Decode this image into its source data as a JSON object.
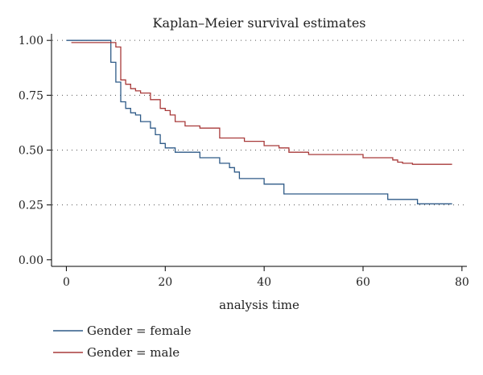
{
  "chart_data": {
    "type": "line",
    "step": "post",
    "title": "Kaplan–Meier survival estimates",
    "xlabel": "analysis time",
    "ylabel": "",
    "xlim": [
      -3,
      81
    ],
    "ylim": [
      -0.03,
      1.03
    ],
    "xticks": [
      0,
      20,
      40,
      60,
      80
    ],
    "xtick_labels": [
      "0",
      "20",
      "40",
      "60",
      "80"
    ],
    "yticks": [
      0,
      0.25,
      0.5,
      0.75,
      1.0
    ],
    "ytick_labels": [
      "0.00",
      "0.25",
      "0.50",
      "0.75",
      "1.00"
    ],
    "grid": "horizontal dotted",
    "legend_position": "bottom-left",
    "series": [
      {
        "name": "Gender = female",
        "color": "#2e5a87",
        "x": [
          0,
          9,
          10,
          11,
          12,
          13,
          14,
          15,
          17,
          18,
          19,
          20,
          22,
          27,
          31,
          33,
          34,
          35,
          36,
          40,
          44,
          65,
          71,
          78
        ],
        "y": [
          1.0,
          0.9,
          0.81,
          0.72,
          0.69,
          0.67,
          0.66,
          0.63,
          0.6,
          0.57,
          0.53,
          0.51,
          0.49,
          0.465,
          0.44,
          0.42,
          0.4,
          0.37,
          0.37,
          0.345,
          0.3,
          0.275,
          0.255,
          0.255
        ]
      },
      {
        "name": "Gender = male",
        "color": "#a83a3a",
        "x": [
          1,
          9,
          10,
          11,
          12,
          13,
          14,
          15,
          17,
          19,
          20,
          21,
          22,
          24,
          27,
          31,
          36,
          40,
          43,
          45,
          49,
          60,
          66,
          67,
          68,
          70,
          78
        ],
        "y": [
          0.99,
          0.99,
          0.97,
          0.82,
          0.8,
          0.78,
          0.77,
          0.76,
          0.73,
          0.69,
          0.68,
          0.66,
          0.63,
          0.61,
          0.6,
          0.555,
          0.54,
          0.52,
          0.51,
          0.49,
          0.48,
          0.465,
          0.455,
          0.445,
          0.44,
          0.435,
          0.435
        ]
      }
    ]
  }
}
